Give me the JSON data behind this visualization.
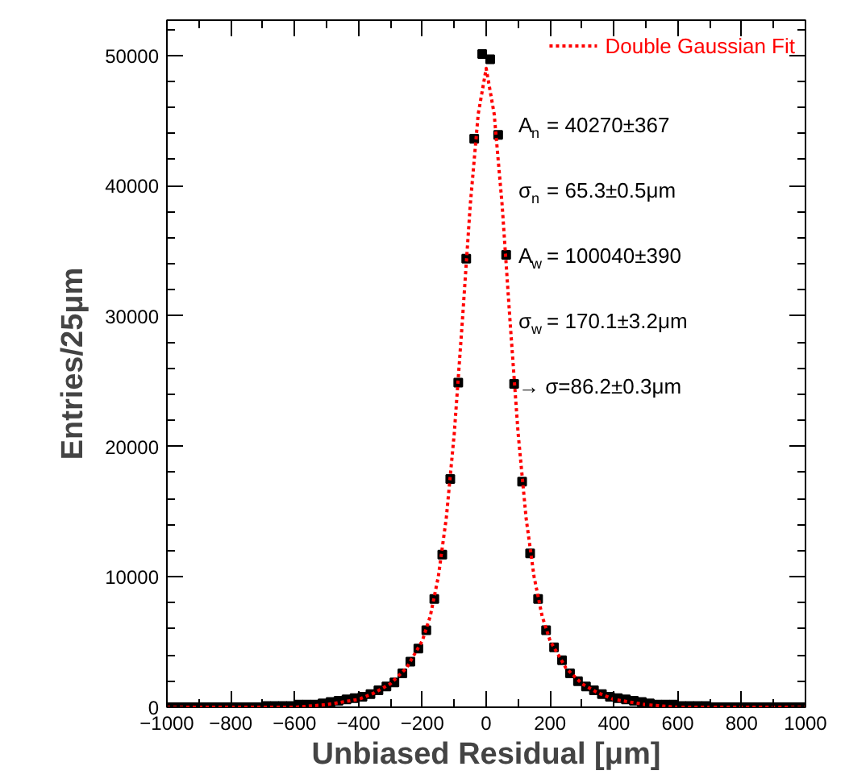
{
  "chart_data": {
    "type": "scatter",
    "xlabel": "Unbiased Residual [μm]",
    "ylabel": "Entries/25μm",
    "x": [
      -987.5,
      -962.5,
      -937.5,
      -912.5,
      -887.5,
      -862.5,
      -837.5,
      -812.5,
      -787.5,
      -762.5,
      -737.5,
      -712.5,
      -687.5,
      -662.5,
      -637.5,
      -612.5,
      -587.5,
      -562.5,
      -537.5,
      -512.5,
      -487.5,
      -462.5,
      -437.5,
      -412.5,
      -387.5,
      -362.5,
      -337.5,
      -312.5,
      -287.5,
      -262.5,
      -237.5,
      -212.5,
      -187.5,
      -162.5,
      -137.5,
      -112.5,
      -87.5,
      -62.5,
      -37.5,
      -12.5,
      12.5,
      37.5,
      62.5,
      87.5,
      112.5,
      137.5,
      162.5,
      187.5,
      212.5,
      237.5,
      262.5,
      287.5,
      312.5,
      337.5,
      362.5,
      387.5,
      412.5,
      437.5,
      462.5,
      487.5,
      512.5,
      537.5,
      562.5,
      587.5,
      612.5,
      637.5,
      662.5,
      687.5,
      712.5,
      737.5,
      762.5,
      787.5,
      812.5,
      837.5,
      862.5,
      887.5,
      912.5,
      937.5,
      962.5,
      987.5
    ],
    "series": [
      {
        "color": "#000000",
        "marker": "square",
        "values": [
          0,
          0,
          0,
          0,
          0,
          0,
          0,
          0,
          0,
          0,
          0,
          0,
          100,
          100,
          100,
          100,
          200,
          200,
          200,
          300,
          400,
          500,
          600,
          700,
          800,
          1000,
          1300,
          1600,
          1900,
          2600,
          3500,
          4500,
          5900,
          8300,
          11700,
          17500,
          24900,
          34400,
          43600,
          50100,
          49700,
          43900,
          34700,
          24800,
          17300,
          11800,
          8300,
          5900,
          4600,
          3600,
          2600,
          2000,
          1600,
          1300,
          1000,
          800,
          700,
          600,
          500,
          400,
          300,
          200,
          200,
          200,
          100,
          100,
          100,
          100,
          0,
          0,
          0,
          0,
          0,
          0,
          0,
          0,
          0,
          0,
          0,
          0
        ]
      },
      {
        "type": "line",
        "name": "Double Gaussian Fit",
        "color": "#ff0000",
        "line_style": "dotted",
        "marker": "none",
        "x": [
          -1000,
          -800,
          -600,
          -500,
          -400,
          -350,
          -300,
          -250,
          -200,
          -175,
          -150,
          -125,
          -100,
          -75,
          -50,
          -25,
          0,
          25,
          50,
          75,
          100,
          125,
          150,
          175,
          200,
          250,
          300,
          350,
          400,
          500,
          600,
          800,
          1000
        ],
        "values": [
          0,
          0,
          0,
          200,
          600,
          1100,
          1800,
          3000,
          5100,
          7000,
          10000,
          14500,
          21000,
          29500,
          38500,
          45500,
          49000,
          45500,
          38500,
          29500,
          21000,
          14500,
          10000,
          7000,
          5100,
          3000,
          1800,
          1100,
          600,
          200,
          0,
          0,
          0
        ]
      }
    ],
    "xlim": [
      -1000,
      1000
    ],
    "ylim": [
      0,
      52700
    ],
    "xticks": [
      {
        "value": -1000,
        "label": "−1000"
      },
      {
        "value": -800,
        "label": "−800"
      },
      {
        "value": -600,
        "label": "−600"
      },
      {
        "value": -400,
        "label": "−400"
      },
      {
        "value": -200,
        "label": "−200"
      },
      0,
      200,
      400,
      600,
      800,
      1000
    ],
    "yticks": [
      0,
      10000,
      20000,
      30000,
      40000,
      50000
    ],
    "grid": false,
    "legend": "top right",
    "annotations": [
      "A$_{n}$ = 40270±367",
      "σ$_{n}$ = 65.3±0.5μm",
      "A$_{w}$ = 100040±390",
      "σ$_{w}$ = 170.1±3.2μm",
      "→   σ=86.2±0.3μm"
    ]
  }
}
